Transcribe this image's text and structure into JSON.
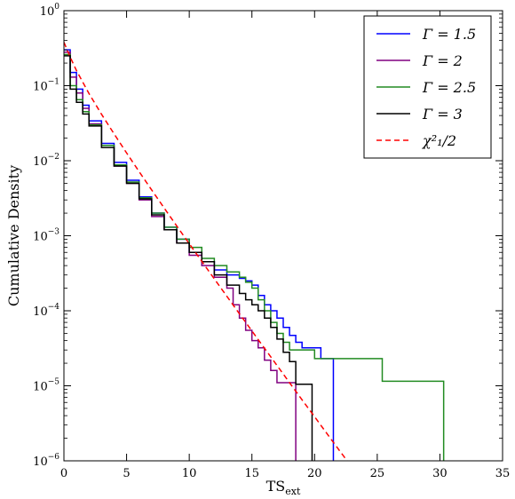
{
  "chart_data": {
    "type": "line",
    "xlabel": "TS",
    "xlabel_sub": "ext",
    "ylabel": "Cumulative Density",
    "xlim": [
      0,
      35
    ],
    "ylim": [
      1e-06,
      1
    ],
    "yscale": "log",
    "x_ticks": [
      0,
      5,
      10,
      15,
      20,
      25,
      30,
      35
    ],
    "y_ticks": [
      {
        "value": 1e-06,
        "base": "10",
        "exp": "−6"
      },
      {
        "value": 1e-05,
        "base": "10",
        "exp": "−5"
      },
      {
        "value": 0.0001,
        "base": "10",
        "exp": "−4"
      },
      {
        "value": 0.001,
        "base": "10",
        "exp": "−3"
      },
      {
        "value": 0.01,
        "base": "10",
        "exp": "−2"
      },
      {
        "value": 0.1,
        "base": "10",
        "exp": "−1"
      },
      {
        "value": 1,
        "base": "10",
        "exp": "0"
      }
    ],
    "grid": false,
    "legend_position": "top-right",
    "series": [
      {
        "name": "Γ = 1.5",
        "color": "#0000ff",
        "dash": "",
        "step": true,
        "x": [
          0,
          0.5,
          1,
          1.5,
          2,
          3,
          4,
          5,
          6,
          7,
          8,
          9,
          10,
          11,
          12,
          13,
          14,
          14.5,
          15,
          15.5,
          16,
          16.5,
          17,
          17.5,
          18,
          18.5,
          19,
          20.5,
          21.5,
          21.5
        ],
        "y": [
          0.3,
          0.15,
          0.09,
          0.055,
          0.034,
          0.017,
          0.0095,
          0.0055,
          0.0033,
          0.002,
          0.0013,
          0.0009,
          0.0006,
          0.00045,
          0.00035,
          0.0003,
          0.00027,
          0.00025,
          0.00022,
          0.00016,
          0.00012,
          0.0001,
          8e-05,
          6e-05,
          4.7e-05,
          3.8e-05,
          3.2e-05,
          2.3e-05,
          1.1e-05,
          1e-06
        ]
      },
      {
        "name": "Γ = 2",
        "color": "#800080",
        "dash": "",
        "step": true,
        "x": [
          0,
          0.5,
          1,
          1.5,
          2,
          3,
          4,
          5,
          6,
          7,
          8,
          9,
          10,
          11,
          12,
          13,
          13.5,
          14,
          14.5,
          15,
          15.5,
          16,
          16.5,
          17,
          17.5,
          18.5,
          18.5
        ],
        "y": [
          0.28,
          0.13,
          0.08,
          0.05,
          0.031,
          0.016,
          0.0085,
          0.005,
          0.003,
          0.0018,
          0.0012,
          0.0008,
          0.00055,
          0.0004,
          0.00028,
          0.0002,
          0.00012,
          8e-05,
          5.5e-05,
          4e-05,
          3.2e-05,
          2.2e-05,
          1.6e-05,
          1.1e-05,
          1.1e-05,
          1.1e-05,
          1e-06
        ]
      },
      {
        "name": "Γ = 2.5",
        "color": "#228b22",
        "dash": "",
        "step": true,
        "x": [
          0,
          0.5,
          1,
          1.5,
          2,
          3,
          4,
          5,
          6,
          7,
          8,
          9,
          10,
          11,
          12,
          13,
          14,
          14.5,
          15,
          15.5,
          16,
          16.5,
          17,
          17.5,
          18,
          20,
          25.4,
          30.3,
          30.3
        ],
        "y": [
          0.26,
          0.1,
          0.065,
          0.045,
          0.03,
          0.016,
          0.0088,
          0.0052,
          0.0032,
          0.002,
          0.0013,
          0.0009,
          0.0007,
          0.0005,
          0.0004,
          0.00033,
          0.00028,
          0.00024,
          0.0002,
          0.00014,
          0.0001,
          7e-05,
          5e-05,
          3.8e-05,
          3e-05,
          2.3e-05,
          1.15e-05,
          1e-06,
          1e-06
        ]
      },
      {
        "name": "Γ = 3",
        "color": "#000000",
        "dash": "",
        "step": true,
        "x": [
          0,
          0.5,
          1,
          1.5,
          2,
          3,
          4,
          5,
          6,
          7,
          8,
          9,
          10,
          11,
          12,
          13,
          14,
          14.5,
          15,
          15.5,
          16,
          16.5,
          17,
          17.5,
          18,
          18.5,
          19.8,
          19.8
        ],
        "y": [
          0.25,
          0.09,
          0.06,
          0.042,
          0.029,
          0.015,
          0.0085,
          0.005,
          0.0031,
          0.0019,
          0.0012,
          0.0008,
          0.0006,
          0.00045,
          0.0003,
          0.00022,
          0.00017,
          0.00014,
          0.00012,
          0.0001,
          8e-05,
          6e-05,
          4.2e-05,
          2.8e-05,
          2.1e-05,
          1.05e-05,
          1.05e-05,
          1e-06
        ]
      },
      {
        "name": "χ²₁/2",
        "color": "#ff0000",
        "dash": "6,4",
        "step": false,
        "x": [
          0,
          0.5,
          1,
          2,
          3,
          4,
          5,
          6,
          7,
          8,
          9,
          10,
          11,
          12,
          13,
          14,
          15,
          16,
          17,
          18,
          19,
          20,
          21,
          22,
          22.6
        ],
        "y": [
          0.38,
          0.24,
          0.159,
          0.0786,
          0.0416,
          0.0228,
          0.0127,
          0.00715,
          0.00408,
          0.00234,
          0.00135,
          0.000783,
          0.000456,
          0.000266,
          0.000156,
          9.15e-05,
          5.38e-05,
          3.17e-05,
          1.87e-05,
          1.1e-05,
          6.5e-06,
          3.87e-06,
          2.29e-06,
          1.36e-06,
          1e-06
        ]
      }
    ]
  }
}
